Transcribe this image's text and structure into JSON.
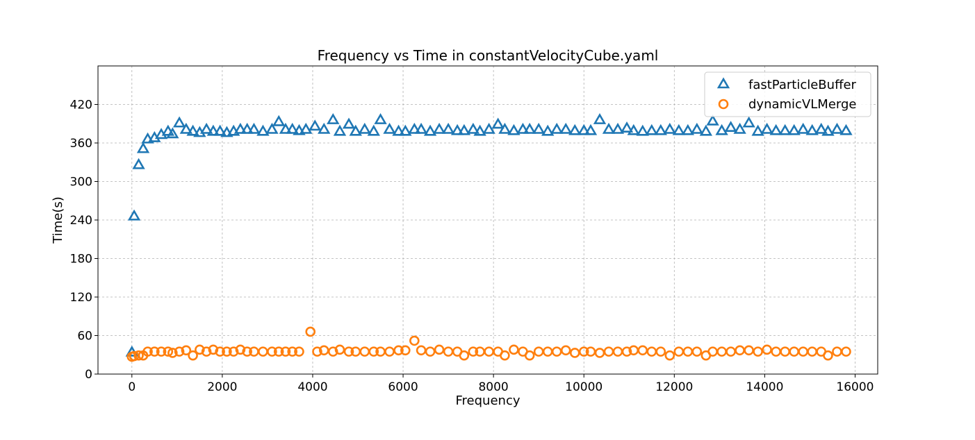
{
  "chart_data": {
    "type": "scatter",
    "title": "Frequency vs Time in constantVelocityCube.yaml",
    "xlabel": "Frequency",
    "ylabel": "Time(s)",
    "xlim": [
      -750,
      16500
    ],
    "ylim": [
      0,
      480
    ],
    "xticks": [
      0,
      2000,
      4000,
      6000,
      8000,
      10000,
      12000,
      14000,
      16000
    ],
    "yticks": [
      0,
      60,
      120,
      180,
      240,
      300,
      360,
      420
    ],
    "grid": true,
    "legend_position": "top-right",
    "series": [
      {
        "name": "fastParticleBuffer",
        "marker": "triangle",
        "color": "#1f77b4",
        "x": [
          0,
          50,
          150,
          250,
          350,
          500,
          650,
          800,
          900,
          1050,
          1200,
          1350,
          1500,
          1650,
          1800,
          1950,
          2100,
          2250,
          2400,
          2550,
          2700,
          2900,
          3100,
          3250,
          3400,
          3550,
          3700,
          3850,
          4050,
          4250,
          4450,
          4600,
          4800,
          4950,
          5150,
          5350,
          5500,
          5700,
          5900,
          6050,
          6250,
          6400,
          6600,
          6800,
          7000,
          7200,
          7350,
          7550,
          7700,
          7900,
          8100,
          8250,
          8450,
          8650,
          8800,
          9000,
          9200,
          9400,
          9600,
          9800,
          10000,
          10150,
          10350,
          10550,
          10750,
          10950,
          11100,
          11300,
          11500,
          11700,
          11900,
          12100,
          12300,
          12500,
          12700,
          12850,
          13050,
          13250,
          13450,
          13650,
          13850,
          14050,
          14250,
          14450,
          14650,
          14850,
          15050,
          15250,
          15400,
          15600,
          15800
        ],
        "y": [
          33,
          245,
          325,
          350,
          365,
          367,
          372,
          377,
          373,
          390,
          380,
          377,
          375,
          380,
          377,
          377,
          375,
          377,
          380,
          380,
          380,
          377,
          380,
          392,
          380,
          380,
          378,
          380,
          385,
          380,
          395,
          377,
          388,
          377,
          380,
          377,
          395,
          380,
          377,
          377,
          380,
          380,
          377,
          380,
          380,
          378,
          378,
          380,
          377,
          380,
          388,
          380,
          378,
          380,
          380,
          380,
          377,
          380,
          380,
          378,
          378,
          378,
          395,
          380,
          380,
          382,
          378,
          377,
          378,
          378,
          380,
          378,
          378,
          380,
          377,
          393,
          378,
          383,
          380,
          390,
          377,
          380,
          378,
          378,
          378,
          380,
          378,
          380,
          377,
          380,
          378
        ]
      },
      {
        "name": "dynamicVLMerge",
        "marker": "circle",
        "color": "#ff7f0e",
        "x": [
          0,
          50,
          150,
          250,
          350,
          500,
          650,
          800,
          900,
          1050,
          1200,
          1350,
          1500,
          1650,
          1800,
          1950,
          2100,
          2250,
          2400,
          2550,
          2700,
          2900,
          3100,
          3250,
          3400,
          3550,
          3700,
          3950,
          4100,
          4250,
          4450,
          4600,
          4800,
          4950,
          5150,
          5350,
          5500,
          5700,
          5900,
          6050,
          6250,
          6400,
          6600,
          6800,
          7000,
          7200,
          7350,
          7550,
          7700,
          7900,
          8100,
          8250,
          8450,
          8650,
          8800,
          9000,
          9200,
          9400,
          9600,
          9800,
          10000,
          10150,
          10350,
          10550,
          10750,
          10950,
          11100,
          11300,
          11500,
          11700,
          11900,
          12100,
          12300,
          12500,
          12700,
          12850,
          13050,
          13250,
          13450,
          13650,
          13850,
          14050,
          14250,
          14450,
          14650,
          14850,
          15050,
          15250,
          15400,
          15600,
          15800
        ],
        "y": [
          27,
          28,
          29,
          29,
          35,
          35,
          35,
          35,
          33,
          35,
          37,
          29,
          38,
          35,
          38,
          35,
          35,
          35,
          38,
          35,
          35,
          35,
          35,
          35,
          35,
          35,
          35,
          66,
          35,
          37,
          35,
          38,
          35,
          35,
          35,
          35,
          35,
          35,
          37,
          37,
          52,
          37,
          35,
          38,
          35,
          35,
          29,
          35,
          35,
          35,
          35,
          29,
          38,
          35,
          29,
          35,
          35,
          35,
          37,
          33,
          35,
          35,
          33,
          35,
          35,
          35,
          37,
          37,
          35,
          35,
          29,
          35,
          35,
          35,
          29,
          35,
          35,
          35,
          37,
          37,
          35,
          38,
          35,
          35,
          35,
          35,
          35,
          35,
          29,
          35,
          35
        ]
      }
    ]
  }
}
